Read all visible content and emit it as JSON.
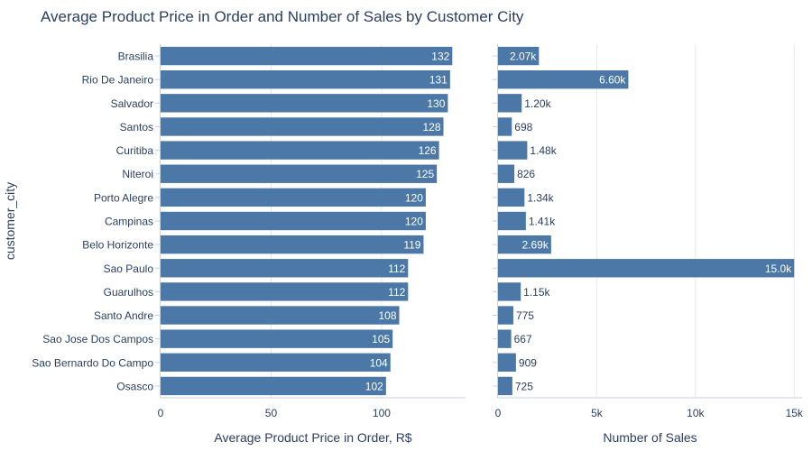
{
  "title": "Average Product Price in Order and Number of Sales by Customer City",
  "colors": {
    "bar": "#4c78a8",
    "grid": "#e5e8ee",
    "axis": "#c8d1dc",
    "text": "#2a3f5f",
    "label_inside": "#ffffff"
  },
  "chart_data": [
    {
      "type": "bar",
      "orientation": "horizontal",
      "ylabel": "customer_city",
      "xlabel": "Average Product Price in Order, R$",
      "xlim": [
        0,
        138
      ],
      "xticks": [
        0,
        50,
        100
      ],
      "xtick_labels": [
        "0",
        "50",
        "100"
      ],
      "grid": true,
      "categories": [
        "Brasilia",
        "Rio De Janeiro",
        "Salvador",
        "Santos",
        "Curitiba",
        "Niteroi",
        "Porto Alegre",
        "Campinas",
        "Belo Horizonte",
        "Sao Paulo",
        "Guarulhos",
        "Santo Andre",
        "Sao Jose Dos Campos",
        "Sao Bernardo Do Campo",
        "Osasco"
      ],
      "values": [
        132,
        131,
        130,
        128,
        126,
        125,
        120,
        120,
        119,
        112,
        112,
        108,
        105,
        104,
        102
      ],
      "data_labels": [
        "132",
        "131",
        "130",
        "128",
        "126",
        "125",
        "120",
        "120",
        "119",
        "112",
        "112",
        "108",
        "105",
        "104",
        "102"
      ]
    },
    {
      "type": "bar",
      "orientation": "horizontal",
      "xlabel": "Number of Sales",
      "xlim": [
        0,
        15400
      ],
      "xticks": [
        0,
        5000,
        10000,
        15000
      ],
      "xtick_labels": [
        "0",
        "5k",
        "10k",
        "15k"
      ],
      "grid": true,
      "categories": [
        "Brasilia",
        "Rio De Janeiro",
        "Salvador",
        "Santos",
        "Curitiba",
        "Niteroi",
        "Porto Alegre",
        "Campinas",
        "Belo Horizonte",
        "Sao Paulo",
        "Guarulhos",
        "Santo Andre",
        "Sao Jose Dos Campos",
        "Sao Bernardo Do Campo",
        "Osasco"
      ],
      "values": [
        2070,
        6600,
        1200,
        698,
        1480,
        826,
        1340,
        1410,
        2690,
        15000,
        1150,
        775,
        667,
        909,
        725
      ],
      "data_labels": [
        "2.07k",
        "6.60k",
        "1.20k",
        "698",
        "1.48k",
        "826",
        "1.34k",
        "1.41k",
        "2.69k",
        "15.0k",
        "1.15k",
        "775",
        "667",
        "909",
        "725"
      ]
    }
  ]
}
